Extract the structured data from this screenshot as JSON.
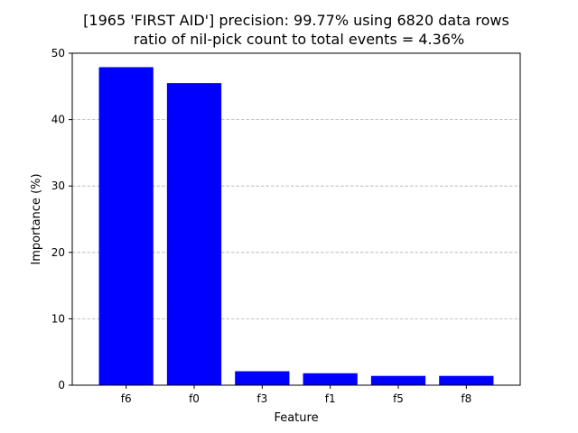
{
  "chart_data": {
    "type": "bar",
    "title_line1": "[1965 'FIRST AID'] precision: 99.77% using 6820 data rows",
    "title_line2": "ratio of nil-pick count to total events = 4.36%",
    "xlabel": "Feature",
    "ylabel": "Importance (%)",
    "categories": [
      "f6",
      "f0",
      "f3",
      "f1",
      "f5",
      "f8"
    ],
    "values": [
      47.9,
      45.5,
      2.1,
      1.8,
      1.4,
      1.4
    ],
    "ylim": [
      0,
      50
    ],
    "yticks": [
      "0",
      "10",
      "20",
      "30",
      "40",
      "50"
    ],
    "bar_color": "#0000ff",
    "grid": "y-dashed"
  }
}
